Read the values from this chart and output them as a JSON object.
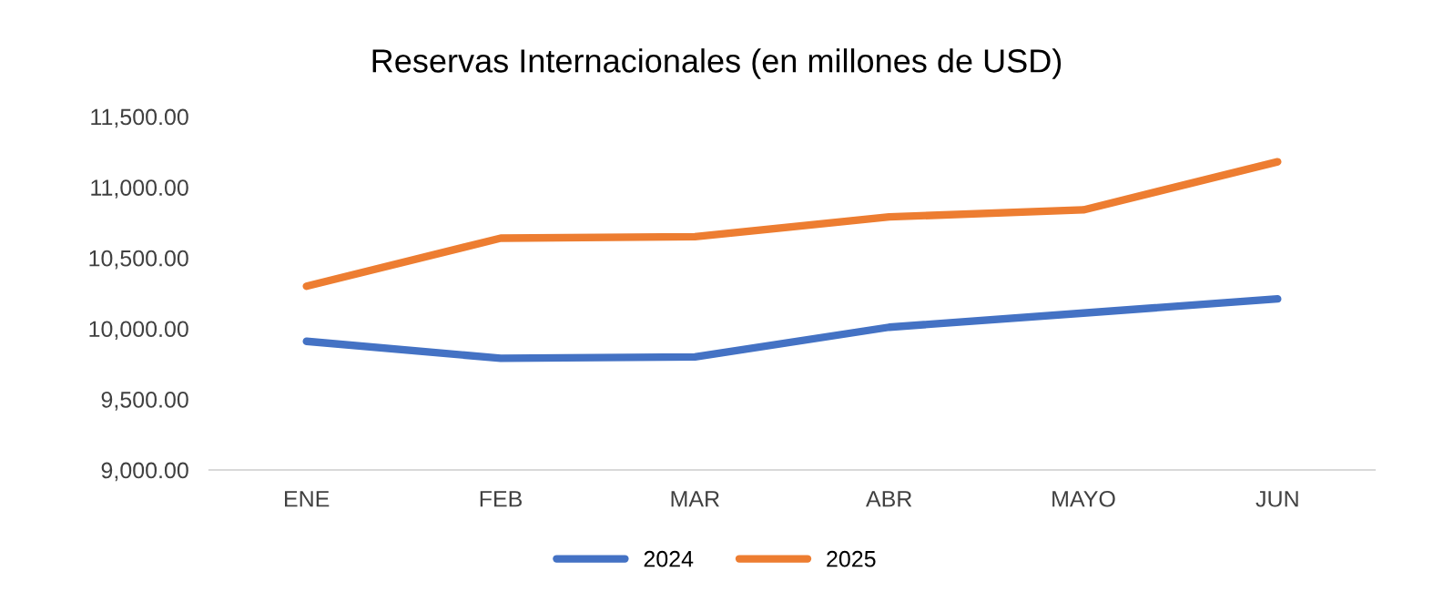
{
  "chart_data": {
    "type": "line",
    "title": "Reservas Internacionales (en millones de USD)",
    "categories": [
      "ENE",
      "FEB",
      "MAR",
      "ABR",
      "MAYO",
      "JUN"
    ],
    "series": [
      {
        "name": "2024",
        "color": "#4472c4",
        "values": [
          9910,
          9790,
          9800,
          10010,
          10110,
          10210
        ]
      },
      {
        "name": "2025",
        "color": "#ed7d31",
        "values": [
          10300,
          10640,
          10650,
          10790,
          10840,
          11180
        ]
      }
    ],
    "ylim": [
      9000,
      11500
    ],
    "yticks": [
      {
        "value": 9000,
        "label": "9,000.00"
      },
      {
        "value": 9500,
        "label": "9,500.00"
      },
      {
        "value": 10000,
        "label": "10,000.00"
      },
      {
        "value": 10500,
        "label": "10,500.00"
      },
      {
        "value": 11000,
        "label": "11,000.00"
      },
      {
        "value": 11500,
        "label": "11,500.00"
      }
    ],
    "grid": false,
    "legend": "bottom",
    "marker": "none",
    "line_style": "solid"
  }
}
